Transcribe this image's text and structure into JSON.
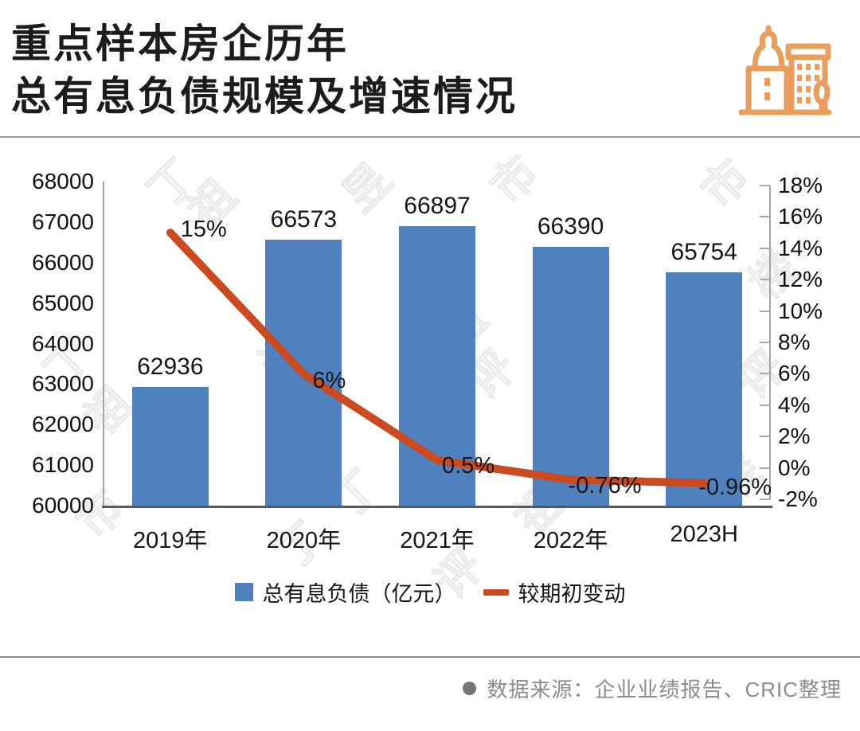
{
  "header": {
    "title_line1": "重点样本房企历年",
    "title_line2": "总有息负债规模及增速情况",
    "logo_icon": "buildings-icon",
    "logo_color": "#EB9D5C"
  },
  "chart_data": {
    "type": "bar+line",
    "categories": [
      "2019年",
      "2020年",
      "2021年",
      "2022年",
      "2023H"
    ],
    "series": [
      {
        "name": "总有息负债（亿元）",
        "type": "bar",
        "values": [
          62936,
          66573,
          66897,
          66390,
          65754
        ],
        "labels": [
          "62936",
          "66573",
          "66897",
          "66390",
          "65754"
        ],
        "color": "#4E81BD"
      },
      {
        "name": "较期初变动",
        "type": "line",
        "values": [
          15,
          6,
          0.5,
          -0.76,
          -0.96
        ],
        "labels": [
          "15%",
          "6%",
          "0.5%",
          "-0.76%",
          "-0.96%"
        ],
        "color": "#CC4A1F"
      }
    ],
    "left_axis": {
      "min": 60000,
      "max": 68000,
      "step": 1000,
      "ticks": [
        "68000",
        "67000",
        "66000",
        "65000",
        "64000",
        "63000",
        "62000",
        "61000",
        "60000"
      ]
    },
    "right_axis": {
      "min": -2,
      "max": 18,
      "step": 2,
      "ticks": [
        "18%",
        "16%",
        "14%",
        "12%",
        "10%",
        "8%",
        "6%",
        "4%",
        "2%",
        "0%",
        "-2%"
      ]
    },
    "grid": false,
    "legend_position": "bottom-center"
  },
  "legend": [
    {
      "label": "总有息负债（亿元）",
      "swatch": "square",
      "color": "#4E81BD"
    },
    {
      "label": "较期初变动",
      "swatch": "line",
      "color": "#CC4A1F"
    }
  ],
  "watermark": {
    "chars": [
      "丁",
      "祖",
      "昱",
      "评",
      "楼",
      "市"
    ]
  },
  "footer": {
    "bullet": "●",
    "source_text": "数据来源：企业业绩报告、CRIC整理"
  }
}
